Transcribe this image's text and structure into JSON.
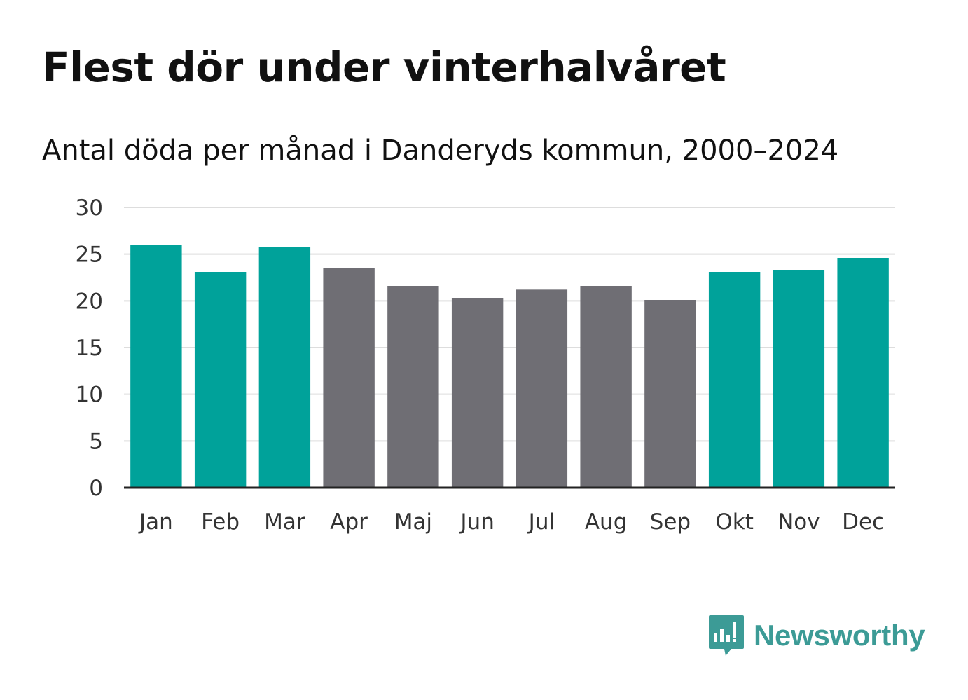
{
  "header": {
    "title": "Flest dör under vinterhalvåret",
    "subtitle": "Antal döda per månad i Danderyds kommun, 2000–2024"
  },
  "colors": {
    "winter": "#00a29a",
    "summer": "#6f6e74",
    "grid": "#dddddd",
    "axis": "#222222",
    "logo": "#3c9b96"
  },
  "chart_data": {
    "type": "bar",
    "title": "Flest dör under vinterhalvåret",
    "subtitle": "Antal döda per månad i Danderyds kommun, 2000–2024",
    "xlabel": "",
    "ylabel": "",
    "ylim": [
      0,
      30
    ],
    "yticks": [
      0,
      5,
      10,
      15,
      20,
      25,
      30
    ],
    "grid": true,
    "categories": [
      "Jan",
      "Feb",
      "Mar",
      "Apr",
      "Maj",
      "Jun",
      "Jul",
      "Aug",
      "Sep",
      "Okt",
      "Nov",
      "Dec"
    ],
    "values": [
      26.0,
      23.1,
      25.8,
      23.5,
      21.6,
      20.3,
      21.2,
      21.6,
      20.1,
      23.1,
      23.3,
      24.6
    ],
    "highlight": [
      true,
      true,
      true,
      false,
      false,
      false,
      false,
      false,
      false,
      true,
      true,
      true
    ]
  },
  "logo": {
    "text": "Newsworthy",
    "icon": "newsworthy-bar-chart-icon"
  }
}
